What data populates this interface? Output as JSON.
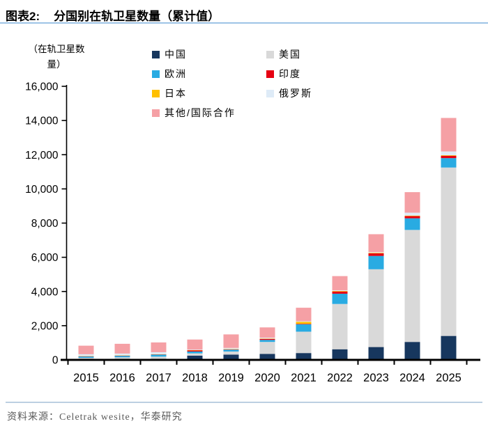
{
  "header": {
    "figure_label": "图表2:",
    "title": "分国别在轨卫星数量（累计值）"
  },
  "axis_unit": {
    "line1": "（在轨卫星数",
    "line2": "量）"
  },
  "footer": {
    "source_text": "资料来源：Celetrak wesite，华泰研究"
  },
  "colors": {
    "header_rule": "#9DC3E6",
    "footer_rule": "#BCCFE2",
    "axis": "#000000",
    "china_navy": "#17375E",
    "usa_gray": "#D9D9D9",
    "europe_blue": "#29ABE2",
    "india_red": "#E60012",
    "japan_yellow": "#FFC000",
    "russia_pale": "#DEEBF7",
    "other_pink": "#F5A0A5"
  },
  "chart_data": {
    "type": "bar",
    "stacked": true,
    "title": "分国别在轨卫星数量（累计值）",
    "ylabel": "（在轨卫星数量）",
    "xlabel": "",
    "grid": false,
    "legend_position": "top",
    "ylim": [
      0,
      16000
    ],
    "y_tick_step": 2000,
    "y_ticks": [
      "0",
      "2,000",
      "4,000",
      "6,000",
      "8,000",
      "10,000",
      "12,000",
      "14,000",
      "16,000"
    ],
    "categories": [
      "2015",
      "2016",
      "2017",
      "2018",
      "2019",
      "2020",
      "2021",
      "2022",
      "2023",
      "2024",
      "2025"
    ],
    "series": [
      {
        "name": "中国",
        "color": "#17375E",
        "values": [
          40,
          50,
          60,
          250,
          310,
          350,
          400,
          620,
          750,
          1050,
          1400
        ]
      },
      {
        "name": "美国",
        "color": "#D9D9D9",
        "values": [
          80,
          100,
          130,
          130,
          180,
          700,
          1250,
          2650,
          4550,
          6550,
          9850
        ]
      },
      {
        "name": "欧洲",
        "color": "#29ABE2",
        "values": [
          80,
          90,
          115,
          110,
          110,
          120,
          430,
          600,
          780,
          680,
          550
        ]
      },
      {
        "name": "印度",
        "color": "#E60012",
        "values": [
          10,
          10,
          15,
          70,
          20,
          60,
          30,
          130,
          150,
          130,
          140
        ]
      },
      {
        "name": "日本",
        "color": "#FFC000",
        "values": [
          10,
          10,
          15,
          10,
          20,
          20,
          120,
          30,
          30,
          30,
          30
        ]
      },
      {
        "name": "俄罗斯",
        "color": "#DEEBF7",
        "values": [
          110,
          110,
          115,
          30,
          60,
          50,
          30,
          40,
          40,
          170,
          220
        ]
      },
      {
        "name": "其他/国际合作",
        "color": "#F5A0A5",
        "values": [
          500,
          570,
          570,
          590,
          790,
          600,
          790,
          830,
          1050,
          1200,
          1960
        ]
      }
    ],
    "totals": [
      830,
      940,
      1020,
      1190,
      1490,
      1900,
      3050,
      4900,
      7350,
      9810,
      14150
    ]
  }
}
